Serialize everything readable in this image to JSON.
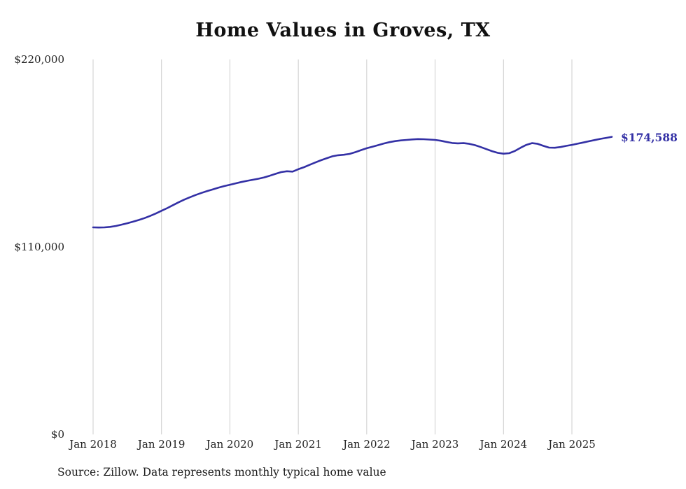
{
  "title": "Home Values in Groves, TX",
  "source_note": "Source: Zillow. Data represents monthly typical home value",
  "end_label": "$174,588",
  "colors": {
    "line": "#3330a5",
    "grid": "#cccccc",
    "axis_text": "#222222",
    "title_text": "#111111"
  },
  "chart_data": {
    "type": "line",
    "title": "Home Values in Groves, TX",
    "xlabel": "",
    "ylabel": "",
    "x_start": "Jan 2018",
    "x_end": "Aug 2025",
    "x_frequency": "monthly",
    "x_tick_labels": [
      "Jan 2018",
      "Jan 2019",
      "Jan 2020",
      "Jan 2021",
      "Jan 2022",
      "Jan 2023",
      "Jan 2024",
      "Jan 2025"
    ],
    "y_ticks": [
      0,
      110000,
      220000
    ],
    "y_tick_labels": [
      "$0",
      "$110,000",
      "$220,000"
    ],
    "ylim": [
      0,
      220000
    ],
    "grid": "vertical-only",
    "legend": false,
    "end_value": 174588,
    "series": [
      {
        "name": "Typical home value",
        "values": [
          121500,
          121400,
          121500,
          121800,
          122300,
          123100,
          123900,
          124800,
          125800,
          126900,
          128200,
          129600,
          131200,
          132800,
          134500,
          136200,
          137800,
          139200,
          140500,
          141700,
          142800,
          143800,
          144800,
          145700,
          146500,
          147300,
          148100,
          148800,
          149400,
          150000,
          150800,
          151800,
          152900,
          153900,
          154400,
          154200,
          155600,
          156800,
          158200,
          159600,
          160900,
          162100,
          163200,
          163800,
          164100,
          164600,
          165600,
          166800,
          167900,
          168800,
          169700,
          170700,
          171500,
          172100,
          172500,
          172800,
          173100,
          173300,
          173200,
          173000,
          172800,
          172300,
          171600,
          171000,
          170800,
          170900,
          170500,
          169700,
          168600,
          167400,
          166200,
          165200,
          164700,
          165000,
          166300,
          168200,
          169900,
          170900,
          170500,
          169300,
          168300,
          168200,
          168600,
          169300,
          169900,
          170600,
          171300,
          172000,
          172700,
          173400,
          174000,
          174588
        ]
      }
    ]
  }
}
